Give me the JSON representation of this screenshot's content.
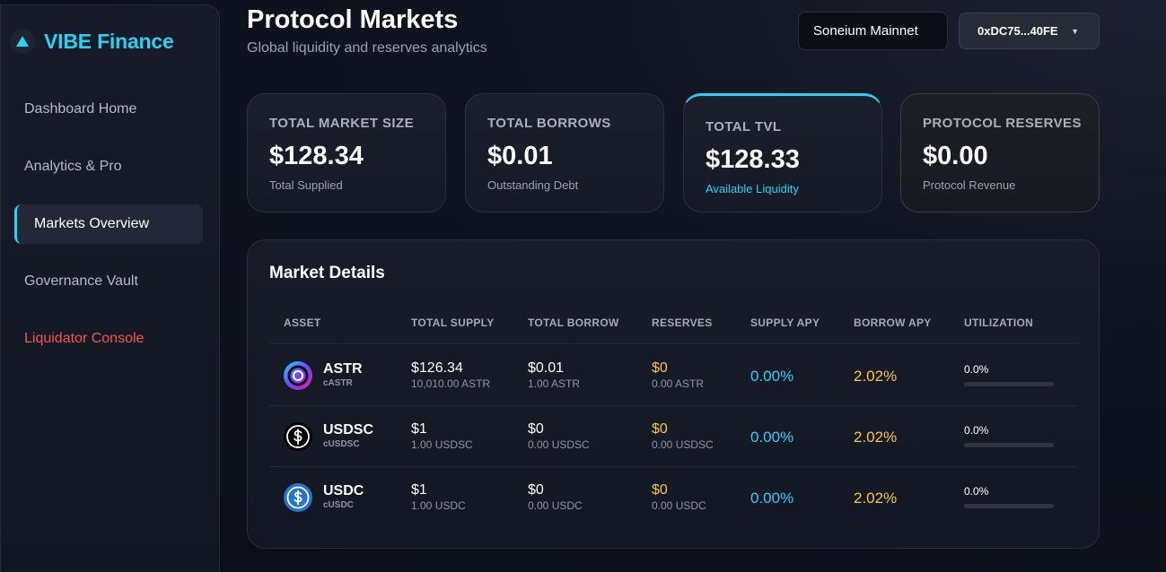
{
  "brand": {
    "name": "VIBE Finance",
    "icon": "triangle-up-icon",
    "accent": "#26d3f2"
  },
  "sidebar": {
    "items": [
      {
        "label": "Dashboard Home"
      },
      {
        "label": "Analytics & Pro"
      },
      {
        "label": "Markets Overview",
        "active": true
      },
      {
        "label": "Governance Vault"
      },
      {
        "label": "Liquidator Console",
        "danger": true
      }
    ]
  },
  "header": {
    "title": "Protocol Markets",
    "subtitle": "Global liquidity and reserves analytics",
    "network": "Soneium Mainnet",
    "wallet": "0xDC75...40FE",
    "wallet_caret": "▼"
  },
  "stats": [
    {
      "label": "TOTAL MARKET SIZE",
      "value": "$128.34",
      "sub": "Total Supplied"
    },
    {
      "label": "TOTAL BORROWS",
      "value": "$0.01",
      "sub": "Outstanding Debt"
    },
    {
      "label": "TOTAL TVL",
      "value": "$128.33",
      "sub": "Available Liquidity"
    },
    {
      "label": "PROTOCOL RESERVES",
      "value": "$0.00",
      "sub": "Protocol Revenue"
    }
  ],
  "market": {
    "title": "Market Details",
    "columns": [
      "ASSET",
      "TOTAL SUPPLY",
      "TOTAL BORROW",
      "RESERVES",
      "SUPPLY APY",
      "BORROW APY",
      "UTILIZATION"
    ],
    "rows": [
      {
        "symbol": "ASTR",
        "ctoken": "cASTR",
        "logo": "astar-logo-icon",
        "supply": "$126.34",
        "supply_sub": "10,010.00 ASTR",
        "borrow": "$0.01",
        "borrow_sub": "1.00 ASTR",
        "reserves": "$0",
        "reserves_sub": "0.00 ASTR",
        "supply_apy": "0.00%",
        "borrow_apy": "2.02%",
        "utilization": "0.0%",
        "utilization_value": 0.0
      },
      {
        "symbol": "USDSC",
        "ctoken": "cUSDSC",
        "logo": "usdsc-logo-icon",
        "supply": "$1",
        "supply_sub": "1.00 USDSC",
        "borrow": "$0",
        "borrow_sub": "0.00 USDSC",
        "reserves": "$0",
        "reserves_sub": "0.00 USDSC",
        "supply_apy": "0.00%",
        "borrow_apy": "2.02%",
        "utilization": "0.0%",
        "utilization_value": 0.0
      },
      {
        "symbol": "USDC",
        "ctoken": "cUSDC",
        "logo": "usdc-logo-icon",
        "supply": "$1",
        "supply_sub": "1.00 USDC",
        "borrow": "$0",
        "borrow_sub": "0.00 USDC",
        "reserves": "$0",
        "reserves_sub": "0.00 USDC",
        "supply_apy": "0.00%",
        "borrow_apy": "2.02%",
        "utilization": "0.0%",
        "utilization_value": 0.0
      }
    ]
  }
}
